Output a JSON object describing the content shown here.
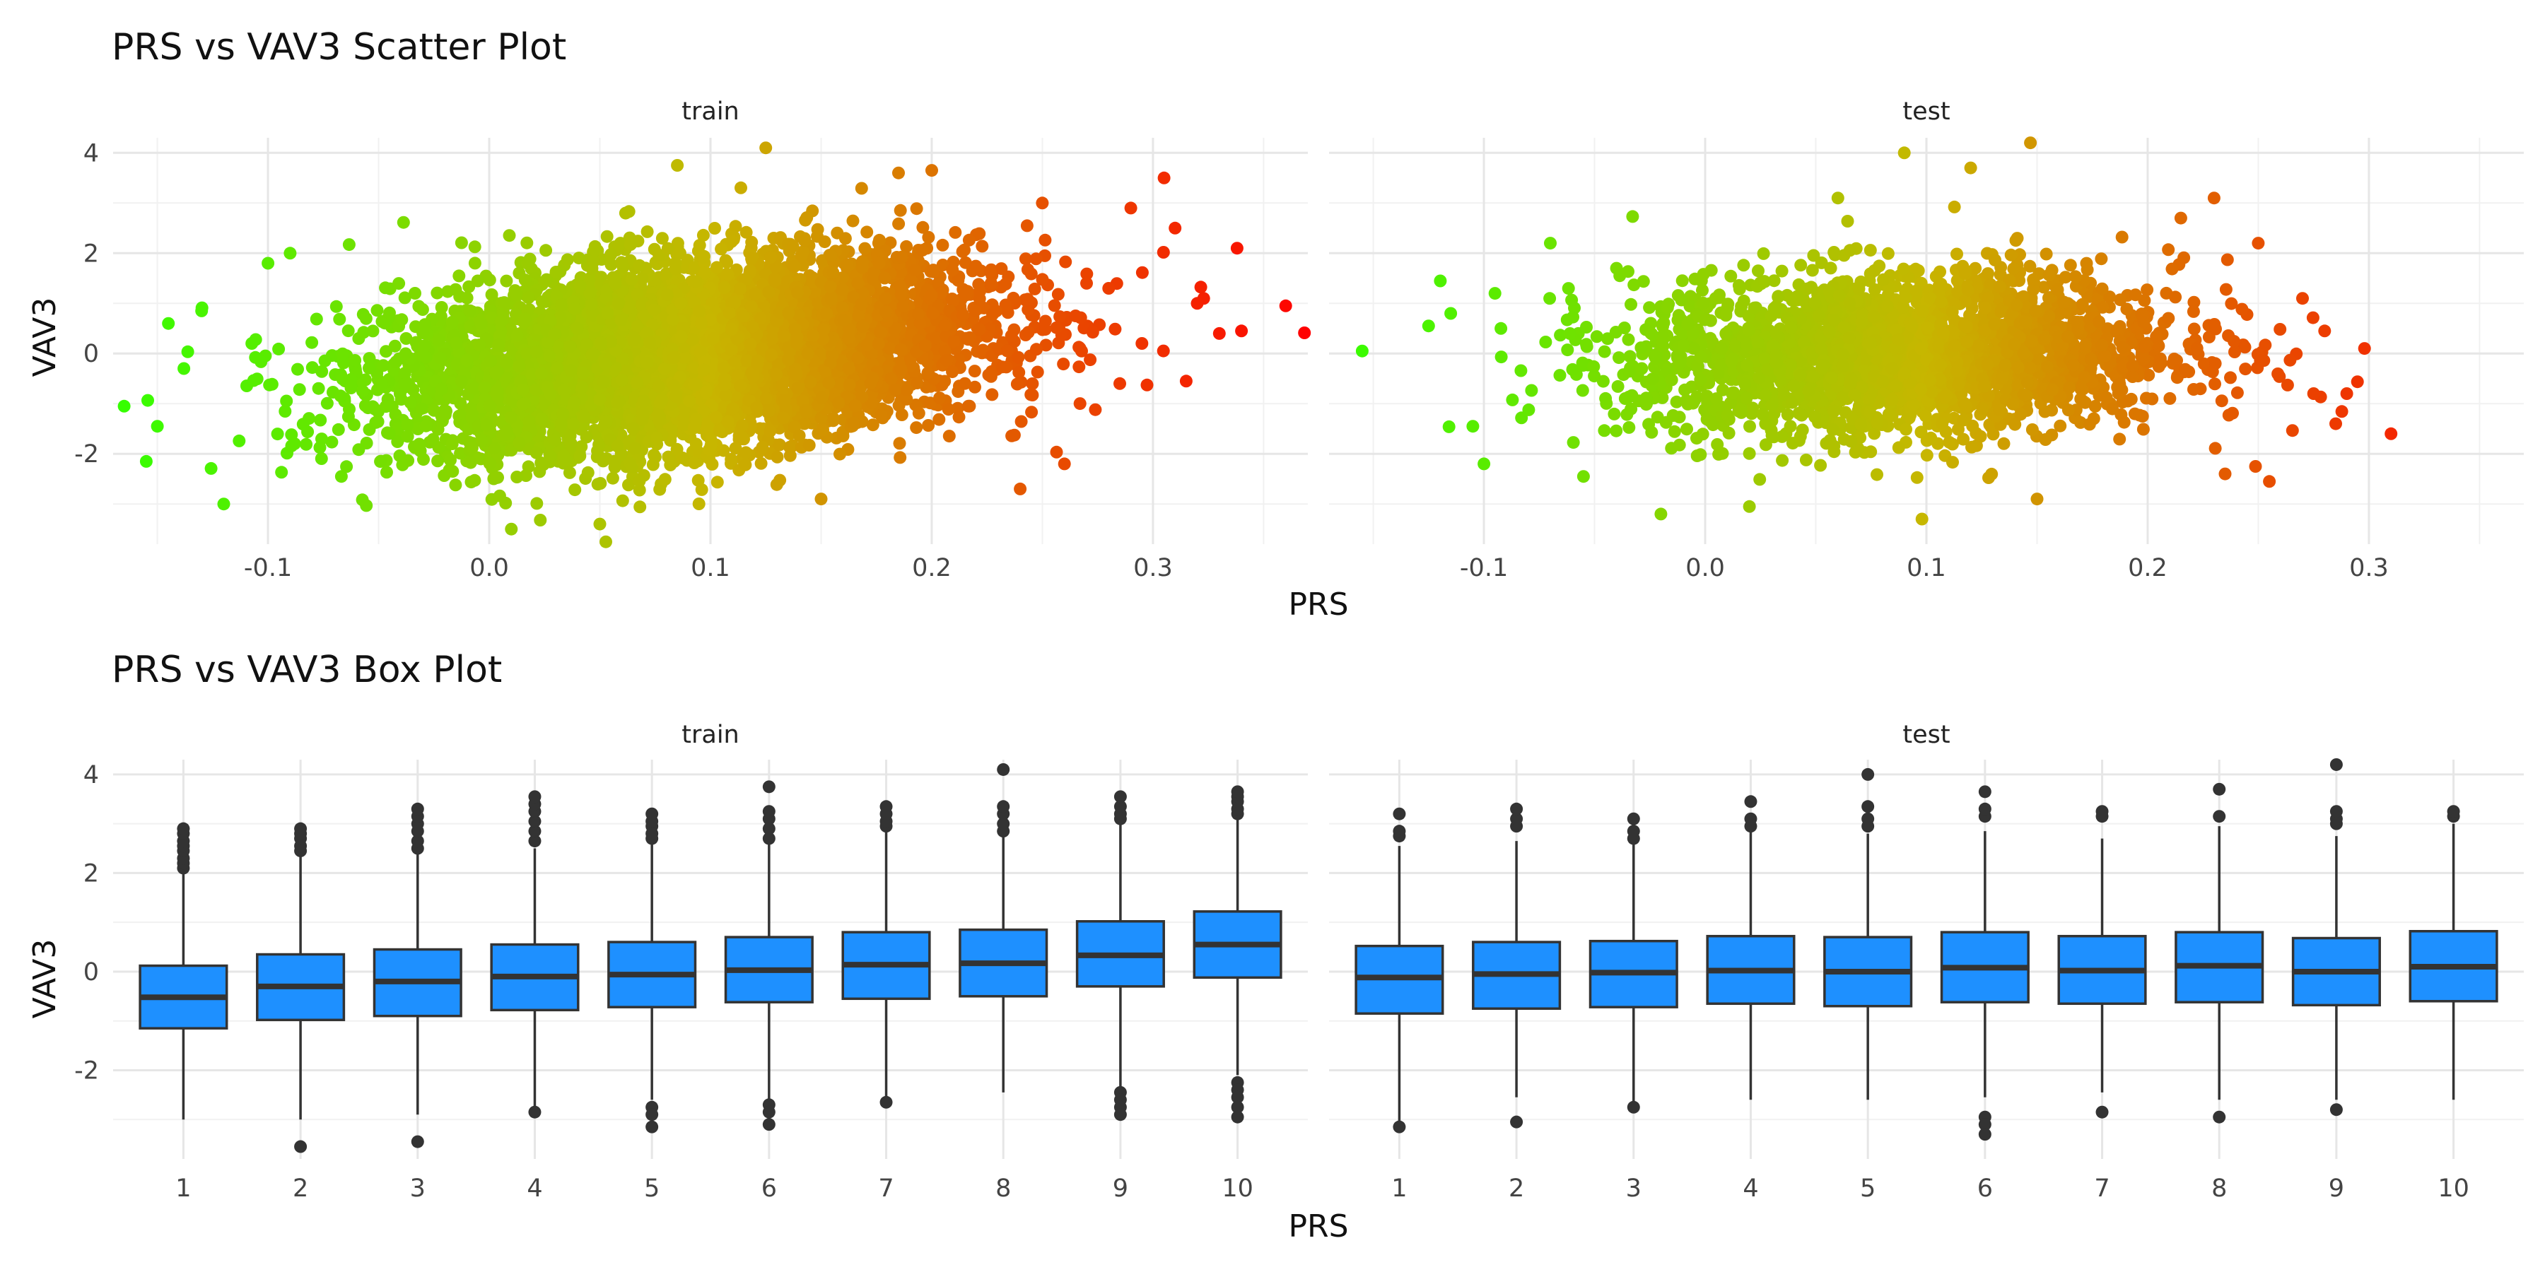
{
  "chart_data": [
    {
      "type": "scatter",
      "title": "PRS vs VAV3 Scatter Plot",
      "xlabel": "PRS",
      "ylabel": "VAV3",
      "facets": [
        "train",
        "test"
      ],
      "xlim": [
        -0.17,
        0.37
      ],
      "ylim": [
        -3.8,
        4.3
      ],
      "xticks": [
        -0.1,
        0.0,
        0.1,
        0.2,
        0.3
      ],
      "xtick_labels": [
        "-0.1",
        "0.0",
        "0.1",
        "0.2",
        "0.3"
      ],
      "yticks": [
        -2,
        0,
        2,
        4
      ],
      "ytick_labels": [
        "-2",
        "0",
        "2",
        "4"
      ],
      "grid": true,
      "legend": "none",
      "color_scale": {
        "low": "#33ff00",
        "mid": "#c7b600",
        "high": "#ff0000",
        "domain": [
          -0.17,
          0.37
        ]
      },
      "series": [
        {
          "name": "train",
          "bulk": {
            "n": 6000,
            "x_mean": 0.09,
            "x_sd": 0.065,
            "y_mean": 0.0,
            "y_sd": 1.05,
            "slope": 4.4
          },
          "points": [
            {
              "x": -0.165,
              "y": -1.05
            },
            {
              "x": -0.155,
              "y": -2.15
            },
            {
              "x": -0.15,
              "y": -1.45
            },
            {
              "x": -0.145,
              "y": 0.6
            },
            {
              "x": -0.138,
              "y": -0.3
            },
            {
              "x": -0.13,
              "y": 0.85
            },
            {
              "x": -0.12,
              "y": -3.0
            },
            {
              "x": -0.1,
              "y": 1.8
            },
            {
              "x": -0.09,
              "y": 2.0
            },
            {
              "x": 0.01,
              "y": -3.5
            },
            {
              "x": 0.05,
              "y": -3.4
            },
            {
              "x": 0.085,
              "y": 3.75
            },
            {
              "x": 0.125,
              "y": 4.1
            },
            {
              "x": 0.15,
              "y": -2.9
            },
            {
              "x": 0.185,
              "y": 3.6
            },
            {
              "x": 0.2,
              "y": 3.65
            },
            {
              "x": 0.24,
              "y": -2.7
            },
            {
              "x": 0.25,
              "y": 3.0
            },
            {
              "x": 0.26,
              "y": -2.2
            },
            {
              "x": 0.265,
              "y": 0.75
            },
            {
              "x": 0.27,
              "y": 1.4
            },
            {
              "x": 0.28,
              "y": 1.3
            },
            {
              "x": 0.285,
              "y": -0.6
            },
            {
              "x": 0.29,
              "y": 2.9
            },
            {
              "x": 0.295,
              "y": 0.2
            },
            {
              "x": 0.305,
              "y": 3.5
            },
            {
              "x": 0.31,
              "y": 2.5
            },
            {
              "x": 0.315,
              "y": -0.55
            },
            {
              "x": 0.32,
              "y": 1.0
            },
            {
              "x": 0.33,
              "y": 0.4
            },
            {
              "x": 0.34,
              "y": 0.45
            },
            {
              "x": 0.338,
              "y": 2.1
            },
            {
              "x": 0.36,
              "y": 0.95
            }
          ]
        },
        {
          "name": "test",
          "bulk": {
            "n": 2500,
            "x_mean": 0.09,
            "x_sd": 0.062,
            "y_mean": 0.0,
            "y_sd": 0.95,
            "slope": 1.2
          },
          "points": [
            {
              "x": -0.155,
              "y": 0.05
            },
            {
              "x": -0.125,
              "y": 0.55
            },
            {
              "x": -0.115,
              "y": 0.8
            },
            {
              "x": -0.105,
              "y": -1.45
            },
            {
              "x": -0.1,
              "y": -2.2
            },
            {
              "x": -0.095,
              "y": 1.2
            },
            {
              "x": -0.07,
              "y": 2.2
            },
            {
              "x": -0.055,
              "y": -2.45
            },
            {
              "x": -0.02,
              "y": -3.2
            },
            {
              "x": 0.02,
              "y": -3.05
            },
            {
              "x": 0.06,
              "y": 3.1
            },
            {
              "x": 0.09,
              "y": 4.0
            },
            {
              "x": 0.098,
              "y": -3.3
            },
            {
              "x": 0.12,
              "y": 3.7
            },
            {
              "x": 0.147,
              "y": 4.2
            },
            {
              "x": 0.15,
              "y": -2.9
            },
            {
              "x": 0.215,
              "y": 2.7
            },
            {
              "x": 0.23,
              "y": 3.1
            },
            {
              "x": 0.235,
              "y": -2.4
            },
            {
              "x": 0.25,
              "y": 2.2
            },
            {
              "x": 0.255,
              "y": -2.55
            },
            {
              "x": 0.27,
              "y": 1.1
            },
            {
              "x": 0.275,
              "y": -0.8
            },
            {
              "x": 0.28,
              "y": 0.45
            },
            {
              "x": 0.285,
              "y": -1.4
            },
            {
              "x": 0.29,
              "y": -0.8
            },
            {
              "x": 0.298,
              "y": 0.1
            },
            {
              "x": 0.31,
              "y": -1.6
            }
          ]
        }
      ]
    },
    {
      "type": "box",
      "title": "PRS vs VAV3 Box Plot",
      "xlabel": "PRS",
      "ylabel": "VAV3",
      "facets": [
        "train",
        "test"
      ],
      "categories": [
        "1",
        "2",
        "3",
        "4",
        "5",
        "6",
        "7",
        "8",
        "9",
        "10"
      ],
      "ylim": [
        -3.8,
        4.3
      ],
      "yticks": [
        -2,
        0,
        2,
        4
      ],
      "ytick_labels": [
        "-2",
        "0",
        "2",
        "4"
      ],
      "grid": true,
      "box_color": "#1e90ff",
      "series": [
        {
          "name": "train",
          "boxes": [
            {
              "q1": -1.15,
              "median": -0.52,
              "q3": 0.12,
              "whisker_low": -3.0,
              "whisker_high": 2.0,
              "outliers": [
                2.1,
                2.2,
                2.3,
                2.45,
                2.55,
                2.65,
                2.8,
                2.9
              ]
            },
            {
              "q1": -0.98,
              "median": -0.3,
              "q3": 0.35,
              "whisker_low": -3.0,
              "whisker_high": 2.35,
              "outliers": [
                -3.55,
                2.45,
                2.55,
                2.7,
                2.8,
                2.9
              ]
            },
            {
              "q1": -0.9,
              "median": -0.2,
              "q3": 0.45,
              "whisker_low": -2.9,
              "whisker_high": 2.4,
              "outliers": [
                -3.45,
                2.5,
                2.65,
                2.85,
                3.0,
                3.15,
                3.3
              ]
            },
            {
              "q1": -0.78,
              "median": -0.1,
              "q3": 0.55,
              "whisker_low": -2.75,
              "whisker_high": 2.5,
              "outliers": [
                -2.85,
                2.65,
                2.85,
                3.05,
                3.25,
                3.4,
                3.55
              ]
            },
            {
              "q1": -0.72,
              "median": -0.06,
              "q3": 0.6,
              "whisker_low": -2.6,
              "whisker_high": 2.6,
              "outliers": [
                -2.75,
                -2.9,
                -3.15,
                2.7,
                2.8,
                2.95,
                3.05,
                3.2
              ]
            },
            {
              "q1": -0.62,
              "median": 0.03,
              "q3": 0.7,
              "whisker_low": -2.6,
              "whisker_high": 2.6,
              "outliers": [
                -2.7,
                -2.85,
                -3.1,
                2.7,
                2.9,
                3.1,
                3.25,
                3.75
              ]
            },
            {
              "q1": -0.55,
              "median": 0.14,
              "q3": 0.8,
              "whisker_low": -2.6,
              "whisker_high": 2.85,
              "outliers": [
                -2.65,
                2.95,
                3.05,
                3.2,
                3.35
              ]
            },
            {
              "q1": -0.5,
              "median": 0.17,
              "q3": 0.85,
              "whisker_low": -2.45,
              "whisker_high": 2.8,
              "outliers": [
                2.85,
                3.0,
                3.2,
                3.35,
                4.1
              ]
            },
            {
              "q1": -0.3,
              "median": 0.33,
              "q3": 1.02,
              "whisker_low": -2.35,
              "whisker_high": 3.0,
              "outliers": [
                -2.45,
                -2.6,
                -2.75,
                -2.9,
                3.1,
                3.2,
                3.35,
                3.55
              ]
            },
            {
              "q1": -0.12,
              "median": 0.55,
              "q3": 1.22,
              "whisker_low": -2.1,
              "whisker_high": 3.1,
              "outliers": [
                -2.25,
                -2.4,
                -2.55,
                -2.75,
                -2.95,
                3.2,
                3.3,
                3.45,
                3.55,
                3.65
              ]
            }
          ]
        },
        {
          "name": "test",
          "boxes": [
            {
              "q1": -0.85,
              "median": -0.12,
              "q3": 0.52,
              "whisker_low": -3.05,
              "whisker_high": 2.55,
              "outliers": [
                -3.15,
                2.75,
                2.85,
                3.2
              ]
            },
            {
              "q1": -0.75,
              "median": -0.05,
              "q3": 0.6,
              "whisker_low": -2.55,
              "whisker_high": 2.65,
              "outliers": [
                -3.05,
                2.95,
                3.1,
                3.3
              ]
            },
            {
              "q1": -0.72,
              "median": -0.02,
              "q3": 0.62,
              "whisker_low": -2.65,
              "whisker_high": 2.6,
              "outliers": [
                -2.75,
                2.7,
                2.85,
                3.1
              ]
            },
            {
              "q1": -0.65,
              "median": 0.02,
              "q3": 0.72,
              "whisker_low": -2.6,
              "whisker_high": 2.85,
              "outliers": [
                2.95,
                3.1,
                3.45
              ]
            },
            {
              "q1": -0.7,
              "median": 0.0,
              "q3": 0.7,
              "whisker_low": -2.6,
              "whisker_high": 2.8,
              "outliers": [
                2.95,
                3.1,
                3.35,
                4.0
              ]
            },
            {
              "q1": -0.62,
              "median": 0.08,
              "q3": 0.8,
              "whisker_low": -2.55,
              "whisker_high": 2.85,
              "outliers": [
                -2.95,
                -3.1,
                -3.3,
                3.15,
                3.3,
                3.65
              ]
            },
            {
              "q1": -0.65,
              "median": 0.02,
              "q3": 0.72,
              "whisker_low": -2.45,
              "whisker_high": 2.7,
              "outliers": [
                -2.85,
                3.15,
                3.25
              ]
            },
            {
              "q1": -0.62,
              "median": 0.12,
              "q3": 0.8,
              "whisker_low": -2.6,
              "whisker_high": 2.95,
              "outliers": [
                -2.95,
                3.15,
                3.7
              ]
            },
            {
              "q1": -0.68,
              "median": 0.0,
              "q3": 0.68,
              "whisker_low": -2.6,
              "whisker_high": 2.75,
              "outliers": [
                -2.8,
                3.0,
                3.1,
                3.25,
                4.2
              ]
            },
            {
              "q1": -0.6,
              "median": 0.1,
              "q3": 0.82,
              "whisker_low": -2.6,
              "whisker_high": 3.0,
              "outliers": [
                3.15,
                3.25
              ]
            }
          ]
        }
      ]
    }
  ]
}
